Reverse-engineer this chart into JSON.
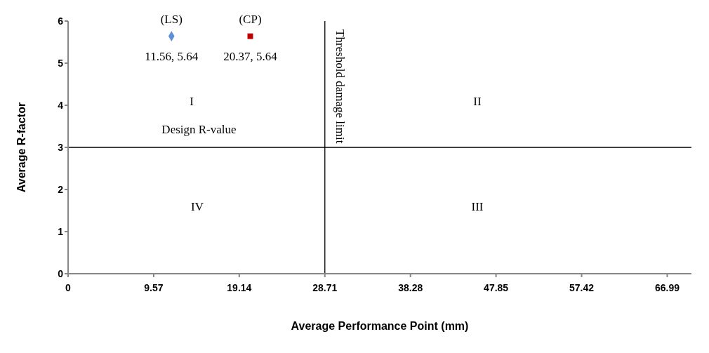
{
  "chart_data": {
    "type": "scatter",
    "xlabel": "Average Performance  Point (mm)",
    "ylabel": "Average R-factor",
    "xlim": [
      0,
      69.7
    ],
    "xticks": [
      0,
      9.57,
      19.14,
      28.71,
      38.28,
      47.85,
      57.42,
      66.99
    ],
    "ylim": [
      0,
      6
    ],
    "yticks": [
      0,
      1,
      2,
      3,
      4,
      5,
      6
    ],
    "grid": false,
    "legend": false,
    "series": [
      {
        "name": "(LS)",
        "color": "#5b8fd6",
        "marker": "diamond",
        "x": [
          11.56
        ],
        "values": [
          5.64
        ],
        "value_labels": [
          "11.56, 5.64"
        ]
      },
      {
        "name": "(CP)",
        "color": "#c00000",
        "marker": "square",
        "x": [
          20.37
        ],
        "values": [
          5.64
        ],
        "value_labels": [
          "20.37, 5.64"
        ]
      }
    ],
    "ref_lines": [
      {
        "axis": "y",
        "value": 3,
        "label": "Design R-value",
        "color": "#000000"
      },
      {
        "axis": "x",
        "value": 28.71,
        "label": "Threshold damage limit",
        "color": "#000000"
      }
    ],
    "annotations": [
      "I",
      "II",
      "III",
      "IV"
    ]
  }
}
